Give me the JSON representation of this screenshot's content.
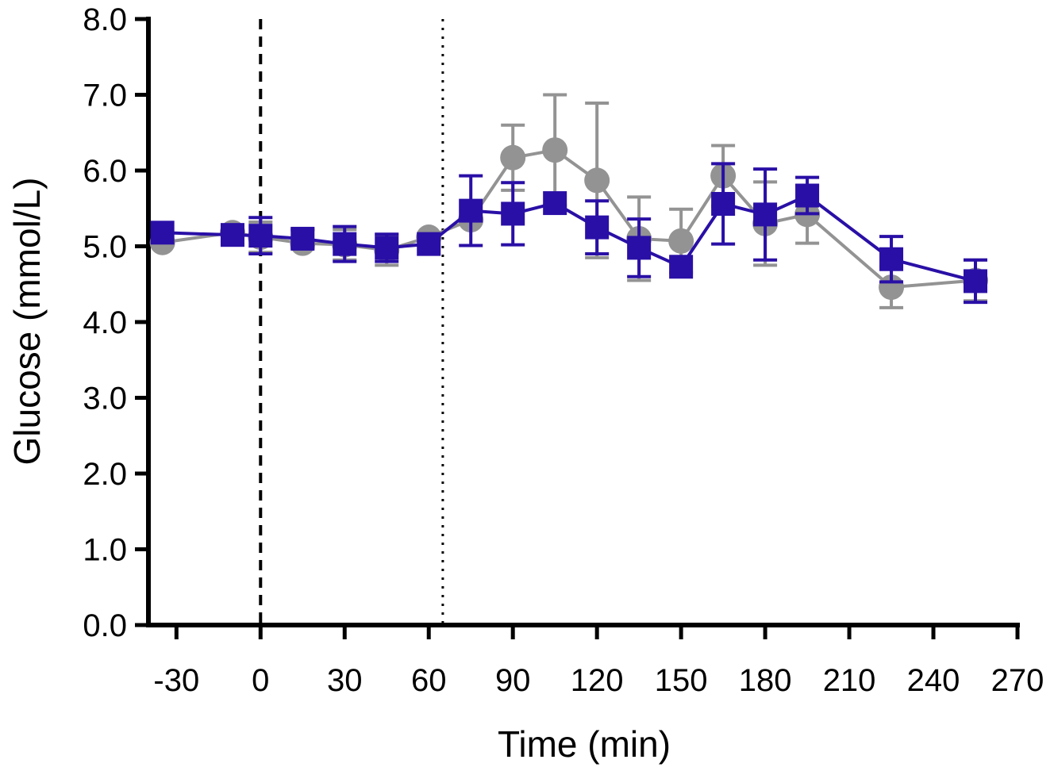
{
  "chart_data": {
    "type": "line",
    "title": "",
    "xlabel": "Time (min)",
    "ylabel": "Glucose (mmol/L)",
    "xlim": [
      -40,
      270
    ],
    "ylim": [
      0,
      8
    ],
    "x_ticks": [
      -30,
      0,
      30,
      60,
      90,
      120,
      150,
      180,
      210,
      240,
      270
    ],
    "x_tick_labels": [
      "-30",
      "0",
      "30",
      "60",
      "90",
      "120",
      "150",
      "180",
      "210",
      "240",
      "270"
    ],
    "y_ticks": [
      0,
      1,
      2,
      3,
      4,
      5,
      6,
      7,
      8
    ],
    "y_tick_labels": [
      "0.0",
      "1.0",
      "2.0",
      "3.0",
      "4.0",
      "5.0",
      "6.0",
      "7.0",
      "8.0"
    ],
    "reference_lines": [
      {
        "x": 0,
        "style": "dashed"
      },
      {
        "x": 65,
        "style": "dotted"
      }
    ],
    "series": [
      {
        "name": "gray-circles",
        "marker": "circle",
        "color": "#939393",
        "x": [
          -35,
          -10,
          0,
          15,
          30,
          45,
          60,
          75,
          90,
          105,
          120,
          135,
          150,
          165,
          180,
          195,
          225,
          255
        ],
        "y": [
          5.05,
          5.18,
          5.12,
          5.04,
          5.02,
          4.95,
          5.12,
          5.35,
          6.17,
          6.27,
          5.87,
          5.1,
          5.07,
          5.93,
          5.3,
          5.42,
          4.46,
          4.55
        ],
        "err": [
          0,
          0,
          0.2,
          0,
          0.2,
          0.2,
          0,
          0,
          0.43,
          0.73,
          1.02,
          0.55,
          0.42,
          0.4,
          0.55,
          0.38,
          0.27,
          0.27
        ]
      },
      {
        "name": "blue-squares",
        "marker": "square",
        "color": "#2a0fa6",
        "x": [
          -35,
          -10,
          0,
          15,
          30,
          45,
          60,
          75,
          90,
          105,
          120,
          135,
          150,
          165,
          180,
          195,
          225,
          255
        ],
        "y": [
          5.18,
          5.15,
          5.14,
          5.1,
          5.03,
          4.98,
          5.03,
          5.47,
          5.43,
          5.57,
          5.25,
          4.98,
          4.73,
          5.56,
          5.42,
          5.67,
          4.83,
          4.54
        ],
        "err": [
          0,
          0,
          0.24,
          0.12,
          0.23,
          0.18,
          0,
          0.46,
          0.41,
          0,
          0.35,
          0.38,
          0,
          0.53,
          0.6,
          0.24,
          0.3,
          0.28
        ]
      }
    ]
  }
}
